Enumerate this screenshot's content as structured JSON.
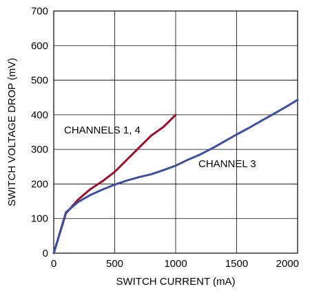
{
  "chart_data": {
    "type": "line",
    "xlabel": "SWITCH CURRENT (mA)",
    "ylabel": "SWITCH VOLTAGE DROP (mV)",
    "xlim": [
      0,
      2000
    ],
    "ylim": [
      0,
      700
    ],
    "xticks": [
      0,
      500,
      1000,
      1500,
      2000
    ],
    "yticks": [
      0,
      100,
      200,
      300,
      400,
      500,
      600,
      700
    ],
    "grid": true,
    "series": [
      {
        "name": "CHANNELS 1, 4",
        "color": "#99112d",
        "x": [
          0,
          100,
          150,
          200,
          300,
          400,
          500,
          600,
          700,
          800,
          900,
          1000
        ],
        "y": [
          0,
          115,
          135,
          155,
          185,
          208,
          235,
          270,
          305,
          340,
          365,
          400
        ]
      },
      {
        "name": "CHANNEL 3",
        "color": "#3c4f9c",
        "x": [
          0,
          100,
          200,
          300,
          400,
          500,
          600,
          700,
          800,
          900,
          1000,
          1100,
          1200,
          1300,
          1400,
          1500,
          1600,
          1700,
          1800,
          1900,
          2000
        ],
        "y": [
          0,
          118,
          148,
          168,
          184,
          198,
          210,
          220,
          228,
          240,
          253,
          270,
          285,
          303,
          323,
          343,
          362,
          382,
          402,
          422,
          443
        ]
      }
    ]
  }
}
